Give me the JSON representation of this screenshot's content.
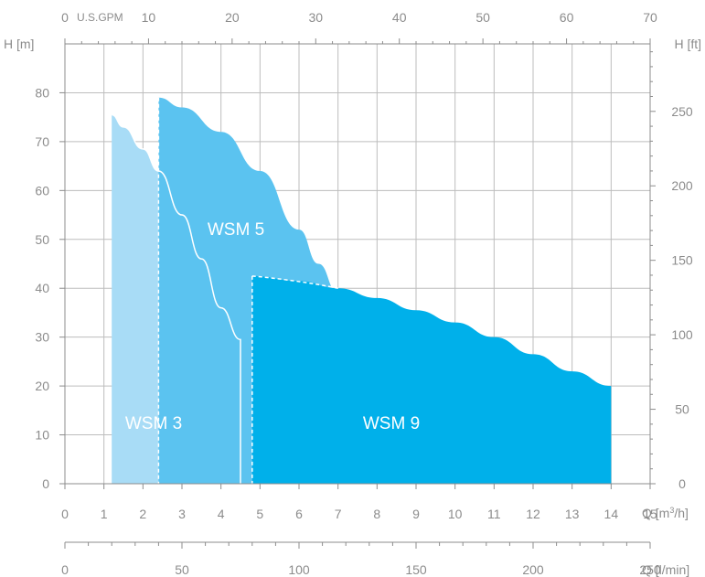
{
  "chart_data": {
    "type": "area",
    "colors": {
      "WSM 3": "#a8dcf6",
      "WSM 5": "#5bc3f0",
      "WSM 9": "#00b0ea",
      "grid": "#bdbdbd",
      "axis": "#8c8c8c"
    },
    "axes": {
      "x_bottom": {
        "unit": "Q [m³/h]",
        "unit_prefix": "Q [m",
        "unit_sup": "3",
        "unit_suffix": "/h]",
        "range": [
          0,
          15
        ],
        "ticks": [
          0,
          1,
          2,
          3,
          4,
          5,
          6,
          7,
          8,
          9,
          10,
          11,
          12,
          13,
          14,
          15
        ]
      },
      "x_lmin": {
        "unit": "Q [l/min]",
        "range": [
          0,
          250
        ],
        "ticks": [
          0,
          50,
          100,
          150,
          200,
          250
        ]
      },
      "x_top": {
        "unit": "U.S.GPM",
        "range": [
          0,
          70
        ],
        "ticks": [
          0,
          10,
          20,
          30,
          40,
          50,
          60,
          70
        ]
      },
      "y_left": {
        "unit": "H [m]",
        "range": [
          0,
          90
        ],
        "ticks": [
          0,
          10,
          20,
          30,
          40,
          50,
          60,
          70,
          80
        ]
      },
      "y_right": {
        "unit": "H [ft]",
        "range": [
          0,
          295.3
        ],
        "ticks": [
          0,
          50,
          100,
          150,
          200,
          250
        ]
      }
    },
    "grid": true,
    "series": [
      {
        "name": "WSM 3",
        "label": "WSM 3",
        "q_min": 1.2,
        "q_max": 4.5,
        "x": [
          1.2,
          1.5,
          2.0,
          2.4,
          3.0,
          3.5,
          4.0,
          4.5
        ],
        "y": [
          75.5,
          73,
          68.5,
          64,
          55,
          46,
          36,
          29.5
        ]
      },
      {
        "name": "WSM 5",
        "label": "WSM 5",
        "q_min": 2.4,
        "q_max": 7.0,
        "x": [
          2.4,
          3.0,
          4.0,
          5.0,
          6.0,
          6.5,
          7.0
        ],
        "y": [
          79,
          77,
          72,
          64,
          52,
          45,
          39
        ]
      },
      {
        "name": "WSM 9",
        "label": "WSM 9",
        "q_min": 4.8,
        "q_max": 14.0,
        "x": [
          4.8,
          6.0,
          7.0,
          8.0,
          9.0,
          10.0,
          11.0,
          12.0,
          13.0,
          14.0
        ],
        "y": [
          42.5,
          41.5,
          40,
          38,
          35.5,
          33,
          30,
          26.5,
          23,
          20
        ]
      }
    ]
  }
}
